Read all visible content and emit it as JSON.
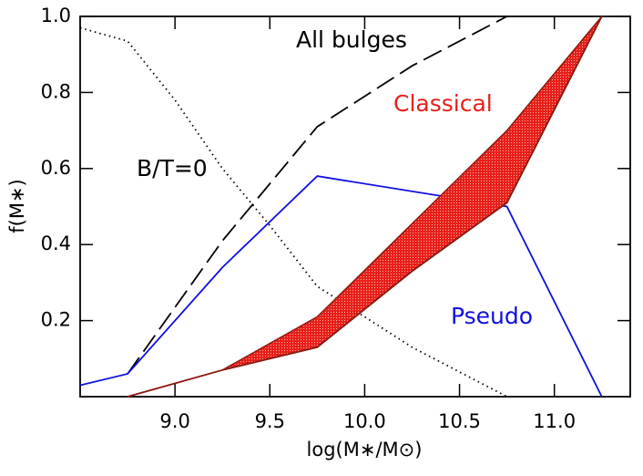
{
  "chart_data": {
    "type": "line",
    "xlabel": "log(M∗/M⊙)",
    "ylabel": "f(M∗)",
    "xlim": [
      8.5,
      11.4
    ],
    "ylim": [
      0,
      1
    ],
    "xticks": [
      {
        "value": 9,
        "label": "9.0"
      },
      9.5,
      {
        "value": 10,
        "label": "10.0"
      },
      10.5,
      {
        "value": 11,
        "label": "11.0"
      }
    ],
    "yticks": [
      0.2,
      0.4,
      0.6,
      0.8,
      {
        "value": 1,
        "label": "1.0"
      }
    ],
    "series": [
      {
        "name": "B/T=0",
        "color": "#000000",
        "style": "dotted",
        "x": [
          8.5,
          8.75,
          9.0,
          9.25,
          9.5,
          9.75,
          10.25,
          10.75
        ],
        "values": [
          0.97,
          0.935,
          0.78,
          0.6,
          0.45,
          0.29,
          0.13,
          0.0
        ]
      },
      {
        "name": "All bulges",
        "color": "#000000",
        "style": "dashed",
        "x": [
          8.75,
          9.25,
          9.75,
          10.25,
          10.75
        ],
        "values": [
          0.06,
          0.41,
          0.71,
          0.87,
          1.0
        ]
      },
      {
        "name": "Pseudo",
        "color": "#1010e0",
        "style": "solid",
        "x": [
          8.5,
          8.75,
          9.25,
          9.75,
          10.75,
          11.25
        ],
        "values": [
          0.03,
          0.06,
          0.34,
          0.58,
          0.5,
          0.0
        ]
      },
      {
        "name": "Classical",
        "color": "#e8201a",
        "style": "band",
        "x": [
          8.75,
          9.25,
          9.75,
          10.25,
          10.75,
          11.25
        ],
        "values": [
          0.0,
          0.07,
          0.13,
          0.33,
          0.51,
          1.0
        ],
        "upper": [
          0.0,
          0.07,
          0.21,
          0.455,
          0.7,
          1.0
        ]
      }
    ]
  }
}
